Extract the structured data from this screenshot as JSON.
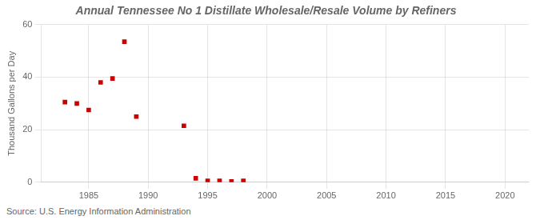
{
  "chart_data": {
    "type": "scatter",
    "title": "Annual Tennessee No 1 Distillate Wholesale/Resale Volume by Refiners",
    "ylabel": "Thousand Gallons per Day",
    "annotations": [
      "Source: U.S. Energy Information Administration"
    ],
    "x": [
      1983,
      1984,
      1985,
      1986,
      1987,
      1988,
      1989,
      1993,
      1994,
      1995,
      1996,
      1997,
      1998
    ],
    "values": [
      30.5,
      30.0,
      27.5,
      38.0,
      39.5,
      53.5,
      25.0,
      21.5,
      1.5,
      0.5,
      0.5,
      0.3,
      0.5
    ],
    "color": "#cc0000",
    "marker": "square",
    "xlim": [
      1981,
      2022
    ],
    "ylim": [
      0,
      60
    ],
    "xticks": [
      1985,
      1990,
      1995,
      2000,
      2005,
      2010,
      2015,
      2020
    ],
    "yticks": [
      0,
      20,
      40,
      60
    ],
    "grid": true
  }
}
